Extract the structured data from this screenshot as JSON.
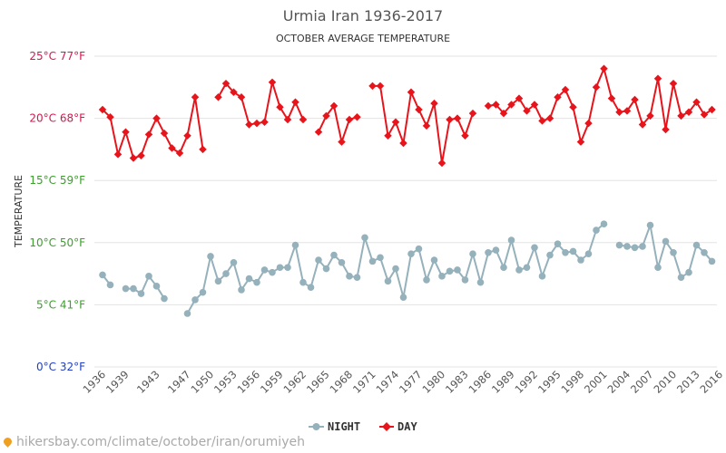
{
  "chart_data": {
    "type": "line",
    "title": "Urmia Iran 1936-2017",
    "subtitle": "OCTOBER AVERAGE TEMPERATURE",
    "ylabel": "TEMPERATURE",
    "xlabel": "",
    "ylim": [
      0,
      25
    ],
    "xlim": [
      1936,
      2017
    ],
    "grid": true,
    "legend_position": "bottom-center",
    "y_ticks": [
      {
        "value": 0,
        "label": "0°C 32°F",
        "color": "#1f3fc8"
      },
      {
        "value": 5,
        "label": "5°C 41°F",
        "color": "#3ca02c"
      },
      {
        "value": 10,
        "label": "10°C 50°F",
        "color": "#3ca02c"
      },
      {
        "value": 15,
        "label": "15°C 59°F",
        "color": "#3ca02c"
      },
      {
        "value": 20,
        "label": "20°C 68°F",
        "color": "#d9154e"
      },
      {
        "value": 25,
        "label": "25°C 77°F",
        "color": "#d9154e"
      }
    ],
    "x_ticks": [
      1936,
      1939,
      1943,
      1947,
      1950,
      1953,
      1956,
      1959,
      1962,
      1965,
      1968,
      1971,
      1974,
      1977,
      1980,
      1983,
      1986,
      1989,
      1992,
      1995,
      1998,
      2001,
      2004,
      2007,
      2010,
      2013,
      2016
    ],
    "series": [
      {
        "name": "NIGHT",
        "color": "#95b1bb",
        "points": [
          [
            1936,
            7.4
          ],
          [
            1937,
            6.6
          ],
          [
            1939,
            6.3
          ],
          [
            1940,
            6.3
          ],
          [
            1941,
            5.9
          ],
          [
            1942,
            7.3
          ],
          [
            1943,
            6.5
          ],
          [
            1944,
            5.5
          ],
          [
            1947,
            4.3
          ],
          [
            1948,
            5.4
          ],
          [
            1949,
            6.0
          ],
          [
            1950,
            8.9
          ],
          [
            1951,
            6.9
          ],
          [
            1952,
            7.5
          ],
          [
            1953,
            8.4
          ],
          [
            1954,
            6.2
          ],
          [
            1955,
            7.1
          ],
          [
            1956,
            6.8
          ],
          [
            1957,
            7.8
          ],
          [
            1958,
            7.6
          ],
          [
            1959,
            8.0
          ],
          [
            1960,
            8.0
          ],
          [
            1961,
            9.8
          ],
          [
            1962,
            6.8
          ],
          [
            1963,
            6.4
          ],
          [
            1964,
            8.6
          ],
          [
            1965,
            7.9
          ],
          [
            1966,
            9.0
          ],
          [
            1967,
            8.4
          ],
          [
            1968,
            7.3
          ],
          [
            1969,
            7.2
          ],
          [
            1970,
            10.4
          ],
          [
            1971,
            8.5
          ],
          [
            1972,
            8.8
          ],
          [
            1973,
            6.9
          ],
          [
            1974,
            7.9
          ],
          [
            1975,
            5.6
          ],
          [
            1976,
            9.1
          ],
          [
            1977,
            9.5
          ],
          [
            1978,
            7.0
          ],
          [
            1979,
            8.6
          ],
          [
            1980,
            7.3
          ],
          [
            1981,
            7.7
          ],
          [
            1982,
            7.8
          ],
          [
            1983,
            7.0
          ],
          [
            1984,
            9.1
          ],
          [
            1985,
            6.8
          ],
          [
            1986,
            9.2
          ],
          [
            1987,
            9.4
          ],
          [
            1988,
            8.0
          ],
          [
            1989,
            10.2
          ],
          [
            1990,
            7.8
          ],
          [
            1991,
            8.0
          ],
          [
            1992,
            9.6
          ],
          [
            1993,
            7.3
          ],
          [
            1994,
            9.0
          ],
          [
            1995,
            9.9
          ],
          [
            1996,
            9.2
          ],
          [
            1997,
            9.3
          ],
          [
            1998,
            8.6
          ],
          [
            1999,
            9.1
          ],
          [
            2000,
            11.0
          ],
          [
            2001,
            11.5
          ],
          [
            2003,
            9.8
          ],
          [
            2004,
            9.7
          ],
          [
            2005,
            9.6
          ],
          [
            2006,
            9.7
          ],
          [
            2007,
            11.4
          ],
          [
            2008,
            8.0
          ],
          [
            2009,
            10.1
          ],
          [
            2010,
            9.2
          ],
          [
            2011,
            7.2
          ],
          [
            2012,
            7.6
          ],
          [
            2013,
            9.8
          ],
          [
            2014,
            9.2
          ],
          [
            2015,
            8.5
          ]
        ]
      },
      {
        "name": "DAY",
        "color": "#e8141b",
        "points": [
          [
            1936,
            20.7
          ],
          [
            1937,
            20.1
          ],
          [
            1938,
            17.1
          ],
          [
            1939,
            18.9
          ],
          [
            1940,
            16.8
          ],
          [
            1941,
            17.0
          ],
          [
            1942,
            18.7
          ],
          [
            1943,
            20.0
          ],
          [
            1944,
            18.8
          ],
          [
            1945,
            17.6
          ],
          [
            1946,
            17.2
          ],
          [
            1947,
            18.6
          ],
          [
            1948,
            21.7
          ],
          [
            1949,
            17.5
          ],
          [
            1951,
            21.7
          ],
          [
            1952,
            22.8
          ],
          [
            1953,
            22.1
          ],
          [
            1954,
            21.7
          ],
          [
            1955,
            19.5
          ],
          [
            1956,
            19.6
          ],
          [
            1957,
            19.7
          ],
          [
            1958,
            22.9
          ],
          [
            1959,
            20.9
          ],
          [
            1960,
            19.9
          ],
          [
            1961,
            21.3
          ],
          [
            1962,
            19.9
          ],
          [
            1964,
            18.9
          ],
          [
            1965,
            20.2
          ],
          [
            1966,
            21.0
          ],
          [
            1967,
            18.1
          ],
          [
            1968,
            19.9
          ],
          [
            1969,
            20.1
          ],
          [
            1971,
            22.6
          ],
          [
            1972,
            22.6
          ],
          [
            1973,
            18.6
          ],
          [
            1974,
            19.7
          ],
          [
            1975,
            18.0
          ],
          [
            1976,
            22.1
          ],
          [
            1977,
            20.7
          ],
          [
            1978,
            19.4
          ],
          [
            1979,
            21.2
          ],
          [
            1980,
            16.4
          ],
          [
            1981,
            19.9
          ],
          [
            1982,
            20.0
          ],
          [
            1983,
            18.6
          ],
          [
            1984,
            20.4
          ],
          [
            1986,
            21.0
          ],
          [
            1987,
            21.1
          ],
          [
            1988,
            20.4
          ],
          [
            1989,
            21.1
          ],
          [
            1990,
            21.6
          ],
          [
            1991,
            20.6
          ],
          [
            1992,
            21.1
          ],
          [
            1993,
            19.8
          ],
          [
            1994,
            20.0
          ],
          [
            1995,
            21.7
          ],
          [
            1996,
            22.3
          ],
          [
            1997,
            20.9
          ],
          [
            1998,
            18.1
          ],
          [
            1999,
            19.6
          ],
          [
            2000,
            22.5
          ],
          [
            2001,
            24.0
          ],
          [
            2002,
            21.6
          ],
          [
            2003,
            20.5
          ],
          [
            2004,
            20.6
          ],
          [
            2005,
            21.5
          ],
          [
            2006,
            19.5
          ],
          [
            2007,
            20.2
          ],
          [
            2008,
            23.2
          ],
          [
            2009,
            19.1
          ],
          [
            2010,
            22.8
          ],
          [
            2011,
            20.2
          ],
          [
            2012,
            20.5
          ],
          [
            2013,
            21.3
          ],
          [
            2014,
            20.3
          ],
          [
            2015,
            20.7
          ]
        ]
      }
    ]
  },
  "footer": {
    "url": "hikersbay.com/climate/october/iran/orumiyeh",
    "icon": "location-pin-icon"
  }
}
